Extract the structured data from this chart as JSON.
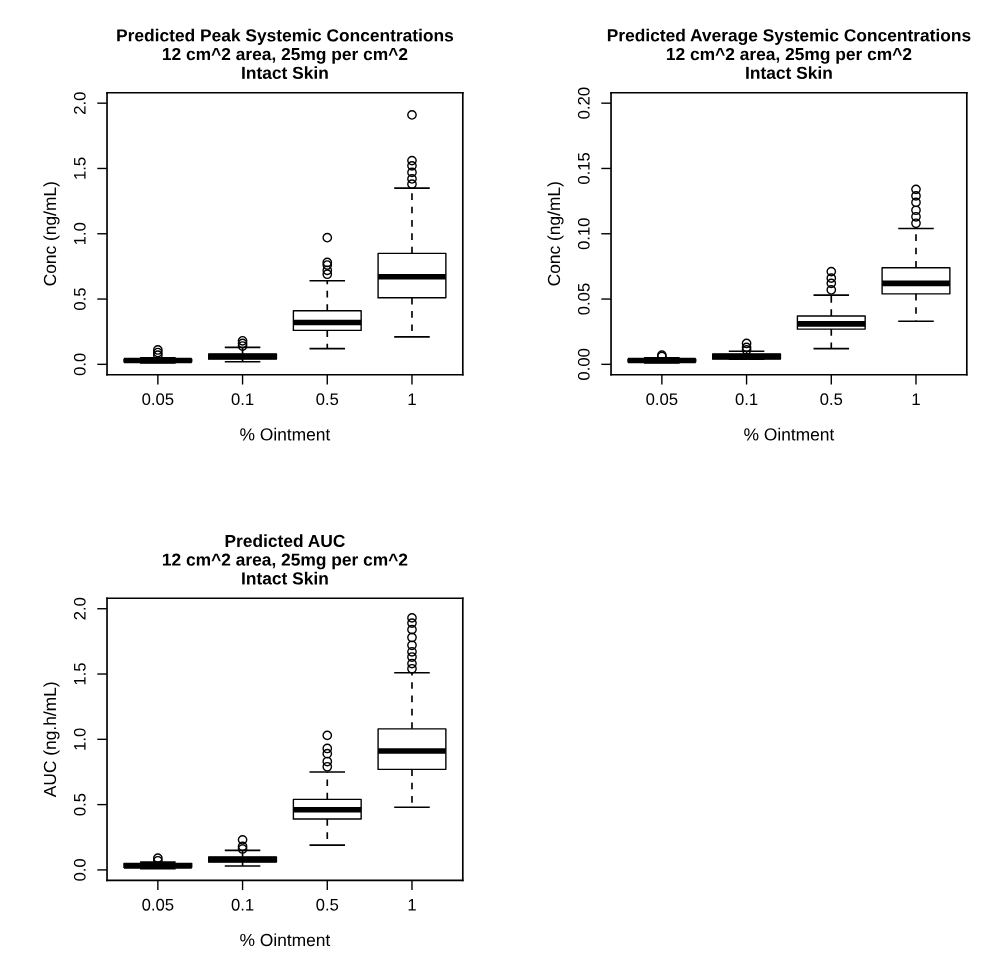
{
  "chart_data": [
    {
      "type": "box",
      "title": "Predicted Peak Systemic Concentrations\n12 cm^2 area, 25mg per cm^2\nIntact Skin",
      "xlabel": "% Ointment",
      "ylabel": "Conc (ng/mL)",
      "categories": [
        "0.05",
        "0.1",
        "0.5",
        "1"
      ],
      "ylim": [
        -0.08,
        2.08
      ],
      "yticks": [
        {
          "value": 0,
          "label": "0.0"
        },
        {
          "value": 0.5,
          "label": "0.5"
        },
        {
          "value": 1,
          "label": "1.0"
        },
        {
          "value": 1.5,
          "label": "1.5"
        },
        {
          "value": 2,
          "label": "2.0"
        }
      ],
      "grid": false,
      "line_style": "dashed",
      "marker": "circle",
      "boxes": [
        {
          "low": 0.01,
          "q1": 0.02,
          "median": 0.03,
          "q3": 0.04,
          "high": 0.05,
          "outliers": [
            0.07,
            0.09,
            0.11
          ]
        },
        {
          "low": 0.02,
          "q1": 0.04,
          "median": 0.06,
          "q3": 0.08,
          "high": 0.13,
          "outliers": [
            0.14,
            0.16,
            0.18
          ]
        },
        {
          "low": 0.12,
          "q1": 0.26,
          "median": 0.32,
          "q3": 0.41,
          "high": 0.64,
          "outliers": [
            0.69,
            0.72,
            0.76,
            0.78,
            0.97
          ]
        },
        {
          "low": 0.21,
          "q1": 0.51,
          "median": 0.67,
          "q3": 0.85,
          "high": 1.35,
          "outliers": [
            1.38,
            1.42,
            1.47,
            1.52,
            1.56,
            1.91
          ]
        }
      ]
    },
    {
      "type": "box",
      "title": "Predicted Average Systemic Concentrations\n12 cm^2 area, 25mg per cm^2\nIntact Skin",
      "xlabel": "% Ointment",
      "ylabel": "Conc (ng/mL)",
      "categories": [
        "0.05",
        "0.1",
        "0.5",
        "1"
      ],
      "ylim": [
        -0.008,
        0.208
      ],
      "yticks": [
        {
          "value": 0,
          "label": "0.00"
        },
        {
          "value": 0.05,
          "label": "0.05"
        },
        {
          "value": 0.1,
          "label": "0.10"
        },
        {
          "value": 0.15,
          "label": "0.15"
        },
        {
          "value": 0.2,
          "label": "0.20"
        }
      ],
      "grid": false,
      "line_style": "dashed",
      "marker": "circle",
      "boxes": [
        {
          "low": 0.001,
          "q1": 0.002,
          "median": 0.003,
          "q3": 0.004,
          "high": 0.005,
          "outliers": [
            0.006,
            0.007
          ]
        },
        {
          "low": 0.004,
          "q1": 0.004,
          "median": 0.006,
          "q3": 0.008,
          "high": 0.01,
          "outliers": [
            0.011,
            0.013,
            0.016
          ]
        },
        {
          "low": 0.012,
          "q1": 0.027,
          "median": 0.031,
          "q3": 0.037,
          "high": 0.053,
          "outliers": [
            0.057,
            0.062,
            0.066,
            0.071
          ]
        },
        {
          "low": 0.033,
          "q1": 0.054,
          "median": 0.062,
          "q3": 0.074,
          "high": 0.104,
          "outliers": [
            0.108,
            0.113,
            0.118,
            0.124,
            0.129,
            0.134
          ]
        }
      ]
    },
    {
      "type": "box",
      "title": "Predicted AUC\n12 cm^2 area, 25mg per cm^2\nIntact Skin",
      "xlabel": "% Ointment",
      "ylabel": "AUC (ng.h/mL)",
      "categories": [
        "0.05",
        "0.1",
        "0.5",
        "1"
      ],
      "ylim": [
        -0.08,
        2.08
      ],
      "yticks": [
        {
          "value": 0,
          "label": "0.0"
        },
        {
          "value": 0.5,
          "label": "0.5"
        },
        {
          "value": 1,
          "label": "1.0"
        },
        {
          "value": 1.5,
          "label": "1.5"
        },
        {
          "value": 2,
          "label": "2.0"
        }
      ],
      "grid": false,
      "line_style": "dashed",
      "marker": "circle",
      "boxes": [
        {
          "low": 0.01,
          "q1": 0.02,
          "median": 0.03,
          "q3": 0.05,
          "high": 0.06,
          "outliers": [
            0.07,
            0.09
          ]
        },
        {
          "low": 0.03,
          "q1": 0.06,
          "median": 0.08,
          "q3": 0.1,
          "high": 0.15,
          "outliers": [
            0.16,
            0.18,
            0.23
          ]
        },
        {
          "low": 0.19,
          "q1": 0.39,
          "median": 0.46,
          "q3": 0.54,
          "high": 0.75,
          "outliers": [
            0.79,
            0.83,
            0.89,
            0.93,
            1.03
          ]
        },
        {
          "low": 0.48,
          "q1": 0.77,
          "median": 0.91,
          "q3": 1.08,
          "high": 1.51,
          "outliers": [
            1.54,
            1.58,
            1.63,
            1.67,
            1.72,
            1.78,
            1.84,
            1.89,
            1.93
          ]
        }
      ]
    }
  ]
}
